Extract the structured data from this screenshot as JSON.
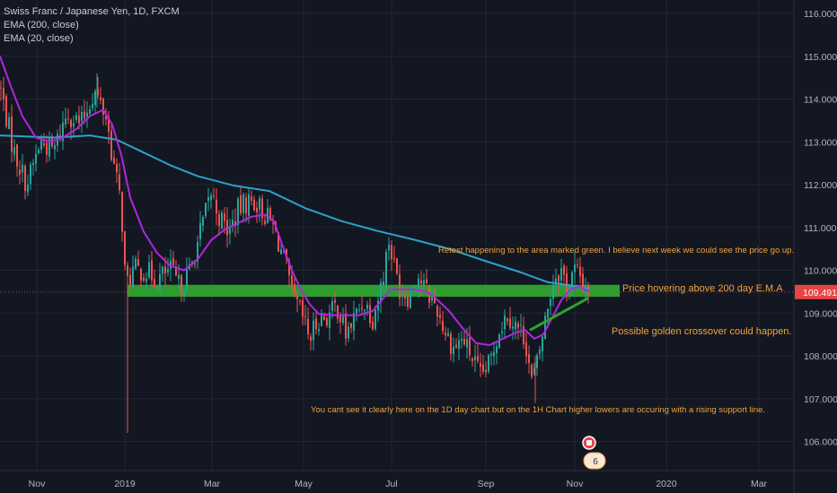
{
  "legend": {
    "symbol": "Swiss Franc / Japanese Yen, 1D, FXCM",
    "ema200_label": "EMA (200, close)",
    "ema20_label": "EMA (20, close)"
  },
  "colors": {
    "background": "#131722",
    "grid": "#232734",
    "axis_text": "#b2b5be",
    "candle_up": "#26a69a",
    "candle_down": "#ef5350",
    "ema200": "#2da2c8",
    "ema20": "#b026e0",
    "support_zone": "#2fa32f",
    "annotation": "#f0a23c",
    "price_tag": "#e84444"
  },
  "chart_data": {
    "type": "candlestick",
    "price_axis": {
      "ticks": [
        106.0,
        107.0,
        108.0,
        109.0,
        110.0,
        111.0,
        112.0,
        113.0,
        114.0,
        115.0,
        116.0
      ],
      "tick_labels": [
        "106.000",
        "107.000",
        "108.000",
        "109.000",
        "110.000",
        "111.000",
        "112.000",
        "113.000",
        "114.000",
        "115.000",
        "116.000"
      ],
      "range": [
        105.4,
        116.2
      ],
      "last_price": 109.491,
      "last_price_label": "109.491"
    },
    "time_axis": {
      "labels": [
        "Nov",
        "2019",
        "Mar",
        "May",
        "Jul",
        "Sep",
        "Nov",
        "2020",
        "Mar"
      ]
    },
    "price_keypoints": [
      [
        0,
        114.3
      ],
      [
        15,
        112.8
      ],
      [
        30,
        112.0
      ],
      [
        45,
        113.0
      ],
      [
        60,
        112.8
      ],
      [
        75,
        113.7
      ],
      [
        90,
        113.4
      ],
      [
        105,
        114.2
      ],
      [
        118,
        113.6
      ],
      [
        128,
        112.3
      ],
      [
        135,
        111.5
      ],
      [
        140,
        109.6
      ],
      [
        148,
        110.0
      ],
      [
        160,
        110.0
      ],
      [
        175,
        109.8
      ],
      [
        190,
        110.0
      ],
      [
        200,
        109.6
      ],
      [
        212,
        110.0
      ],
      [
        222,
        110.8
      ],
      [
        235,
        111.8
      ],
      [
        245,
        111.2
      ],
      [
        255,
        110.9
      ],
      [
        265,
        111.4
      ],
      [
        275,
        111.6
      ],
      [
        285,
        111.6
      ],
      [
        295,
        111.3
      ],
      [
        305,
        111.0
      ],
      [
        318,
        110.1
      ],
      [
        325,
        109.4
      ],
      [
        335,
        109.0
      ],
      [
        345,
        108.4
      ],
      [
        355,
        108.9
      ],
      [
        365,
        108.9
      ],
      [
        375,
        109.2
      ],
      [
        385,
        108.5
      ],
      [
        395,
        108.9
      ],
      [
        405,
        109.3
      ],
      [
        415,
        108.9
      ],
      [
        425,
        109.7
      ],
      [
        433,
        110.7
      ],
      [
        438,
        110.2
      ],
      [
        445,
        109.6
      ],
      [
        455,
        109.4
      ],
      [
        465,
        109.9
      ],
      [
        475,
        109.5
      ],
      [
        485,
        109.2
      ],
      [
        495,
        108.6
      ],
      [
        505,
        108.2
      ],
      [
        515,
        108.4
      ],
      [
        525,
        108.0
      ],
      [
        535,
        107.5
      ],
      [
        545,
        107.8
      ],
      [
        555,
        108.6
      ],
      [
        565,
        109.0
      ],
      [
        575,
        108.7
      ],
      [
        585,
        108.4
      ],
      [
        592,
        107.4
      ],
      [
        598,
        107.8
      ],
      [
        605,
        108.6
      ],
      [
        612,
        109.4
      ],
      [
        618,
        109.9
      ],
      [
        625,
        110.0
      ],
      [
        632,
        109.6
      ],
      [
        640,
        110.0
      ],
      [
        648,
        109.8
      ],
      [
        656,
        109.5
      ]
    ],
    "ema200_keypoints": [
      [
        0,
        113.15
      ],
      [
        60,
        113.1
      ],
      [
        100,
        113.15
      ],
      [
        130,
        113.05
      ],
      [
        160,
        112.75
      ],
      [
        190,
        112.45
      ],
      [
        220,
        112.2
      ],
      [
        260,
        111.98
      ],
      [
        300,
        111.85
      ],
      [
        340,
        111.45
      ],
      [
        380,
        111.15
      ],
      [
        420,
        110.92
      ],
      [
        460,
        110.72
      ],
      [
        500,
        110.5
      ],
      [
        540,
        110.22
      ],
      [
        580,
        109.95
      ],
      [
        610,
        109.72
      ],
      [
        635,
        109.65
      ],
      [
        656,
        109.55
      ]
    ],
    "ema20_keypoints": [
      [
        0,
        115.0
      ],
      [
        12,
        114.3
      ],
      [
        25,
        113.6
      ],
      [
        40,
        113.1
      ],
      [
        55,
        113.0
      ],
      [
        70,
        113.1
      ],
      [
        85,
        113.3
      ],
      [
        100,
        113.6
      ],
      [
        115,
        113.75
      ],
      [
        125,
        113.4
      ],
      [
        135,
        112.7
      ],
      [
        145,
        111.7
      ],
      [
        160,
        110.9
      ],
      [
        175,
        110.4
      ],
      [
        190,
        110.1
      ],
      [
        205,
        110.0
      ],
      [
        220,
        110.25
      ],
      [
        235,
        110.7
      ],
      [
        250,
        110.95
      ],
      [
        265,
        111.1
      ],
      [
        280,
        111.25
      ],
      [
        295,
        111.3
      ],
      [
        305,
        111.15
      ],
      [
        315,
        110.55
      ],
      [
        325,
        110.0
      ],
      [
        335,
        109.55
      ],
      [
        345,
        109.2
      ],
      [
        355,
        108.98
      ],
      [
        370,
        108.95
      ],
      [
        385,
        108.95
      ],
      [
        400,
        108.95
      ],
      [
        415,
        109.05
      ],
      [
        425,
        109.3
      ],
      [
        435,
        109.55
      ],
      [
        445,
        109.55
      ],
      [
        460,
        109.55
      ],
      [
        475,
        109.5
      ],
      [
        485,
        109.35
      ],
      [
        500,
        109.05
      ],
      [
        515,
        108.65
      ],
      [
        530,
        108.3
      ],
      [
        545,
        108.25
      ],
      [
        560,
        108.4
      ],
      [
        575,
        108.55
      ],
      [
        585,
        108.6
      ],
      [
        595,
        108.4
      ],
      [
        605,
        108.5
      ],
      [
        615,
        108.9
      ],
      [
        625,
        109.3
      ],
      [
        635,
        109.55
      ],
      [
        645,
        109.62
      ],
      [
        656,
        109.5
      ]
    ],
    "support_zone": {
      "price_high": 109.66,
      "price_low": 109.38,
      "time_start": 142,
      "time_end": 690
    },
    "trendline": {
      "time_start": 590,
      "price_start": 108.6,
      "time_end": 655,
      "price_end": 109.35
    },
    "annotations": [
      "Retest happening to the area marked green. I believe next week we could see the price go up.",
      "Price hovering above 200 day E.M.A",
      "Possible golden crossover could happen.",
      "You cant see it clearly here on the 1D day chart but on the 1H Chart higher lowers are occuring with a rising support line."
    ],
    "event_badge": "6"
  }
}
